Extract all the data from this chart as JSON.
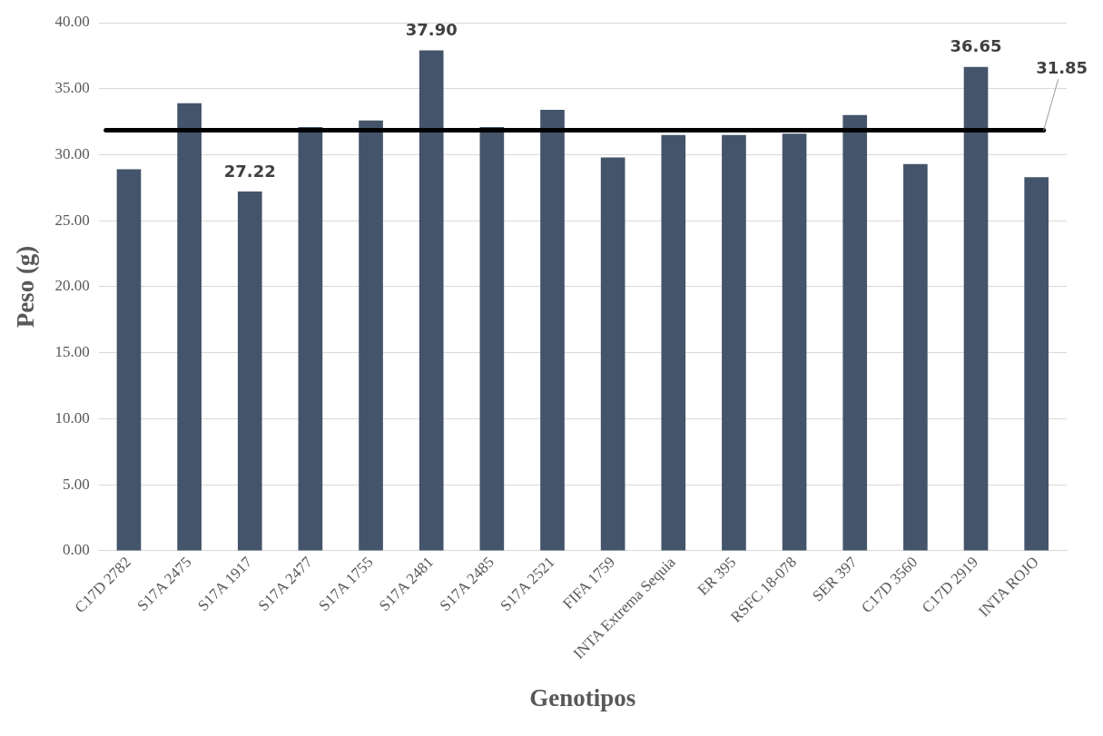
{
  "chart_data": {
    "type": "bar",
    "xlabel": "Genotipos",
    "ylabel": "Peso (g)",
    "categories": [
      "C17D 2782",
      "S17A 2475",
      "S17A 1917",
      "S17A 2477",
      "S17A 1755",
      "S17A 2481",
      "S17A 2485",
      "S17A 2521",
      "FIFA 1759",
      "INTA Extrema Sequia",
      "ER 395",
      "RSFC 18-078",
      "SER 397",
      "C17D 3560",
      "C17D 2919",
      "INTA ROJO"
    ],
    "values": [
      28.9,
      33.9,
      27.22,
      32.1,
      32.6,
      37.9,
      32.1,
      33.4,
      29.8,
      31.5,
      31.5,
      31.6,
      33.0,
      29.3,
      36.65,
      28.3
    ],
    "value_labels": [
      null,
      null,
      "27.22",
      null,
      null,
      "37.90",
      null,
      null,
      null,
      null,
      null,
      null,
      null,
      null,
      "36.65",
      null
    ],
    "color": "#44546a",
    "ylim": [
      0,
      40
    ],
    "yticks": [
      {
        "value": 0,
        "label": "0.00"
      },
      {
        "value": 5,
        "label": "5.00"
      },
      {
        "value": 10,
        "label": "10.00"
      },
      {
        "value": 15,
        "label": "15.00"
      },
      {
        "value": 20,
        "label": "20.00"
      },
      {
        "value": 25,
        "label": "25.00"
      },
      {
        "value": 30,
        "label": "30.00"
      },
      {
        "value": 35,
        "label": "35.00"
      },
      {
        "value": 40,
        "label": "40.00"
      }
    ],
    "ref_lines": [
      {
        "axis": "y",
        "value": 31.85,
        "label": "31.85",
        "color": "#000000"
      }
    ],
    "grid": "y",
    "legend": false
  }
}
